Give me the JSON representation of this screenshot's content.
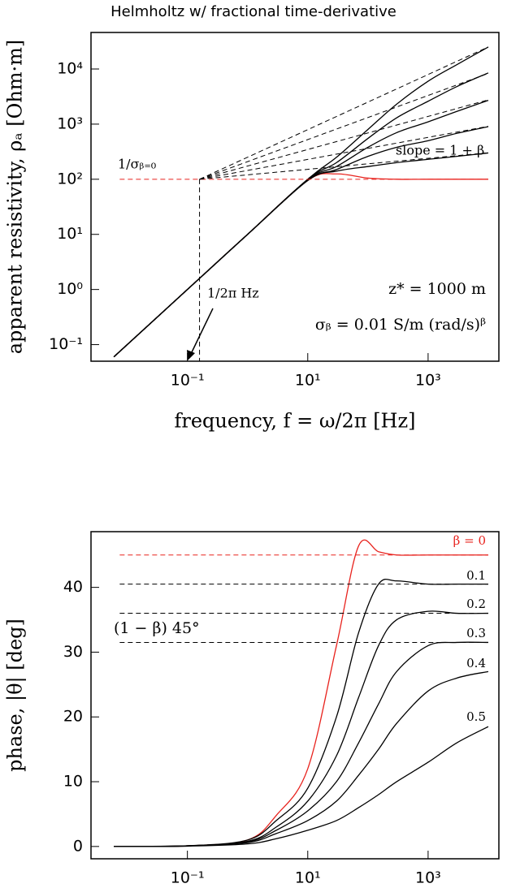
{
  "chart_data": [
    {
      "type": "line",
      "title": "Helmholtz w/ fractional time-derivative",
      "xlabel": "frequency, f = ω/2π [Hz]",
      "ylabel": "apparent resistivity, ρₐ [Ohm·m]",
      "xscale": "log",
      "yscale": "log",
      "xlim": [
        0.0025,
        15000
      ],
      "ylim": [
        0.05,
        46000
      ],
      "xticks": [
        {
          "value": 0.1,
          "label": "10⁻¹"
        },
        {
          "value": 10,
          "label": "10¹"
        },
        {
          "value": 1000,
          "label": "10³"
        }
      ],
      "yticks": [
        {
          "value": 0.1,
          "label": "10⁻¹"
        },
        {
          "value": 1,
          "label": "10⁰"
        },
        {
          "value": 10,
          "label": "10¹"
        },
        {
          "value": 100,
          "label": "10²"
        },
        {
          "value": 1000,
          "label": "10³"
        },
        {
          "value": 10000,
          "label": "10⁴"
        }
      ],
      "x": [
        0.006,
        0.1,
        1,
        10,
        30,
        100,
        300,
        1000,
        3000,
        10000
      ],
      "series": [
        {
          "color": "#e8231e",
          "dash": false,
          "values": [
            0.06,
            1,
            10,
            95,
            125,
            105,
            100,
            100,
            100,
            100
          ]
        },
        {
          "color": "#000000",
          "dash": false,
          "values": [
            0.06,
            1,
            10,
            95,
            140,
            170,
            200,
            230,
            260,
            300
          ]
        },
        {
          "color": "#000000",
          "dash": false,
          "values": [
            0.06,
            1,
            10,
            95,
            150,
            260,
            380,
            500,
            680,
            900
          ]
        },
        {
          "color": "#000000",
          "dash": false,
          "values": [
            0.06,
            1,
            10,
            98,
            170,
            380,
            700,
            1100,
            1700,
            2700
          ]
        },
        {
          "color": "#000000",
          "dash": false,
          "values": [
            0.06,
            1,
            10,
            100,
            200,
            550,
            1300,
            2600,
            4800,
            8500
          ]
        },
        {
          "color": "#000000",
          "dash": false,
          "values": [
            0.06,
            1,
            10,
            100,
            250,
            800,
            2300,
            6000,
            12000,
            25000
          ]
        },
        {
          "color": "#e8231e",
          "dash": true,
          "x": [
            0.0075,
            10000
          ],
          "values": [
            100,
            100
          ]
        },
        {
          "color": "#000000",
          "dash": true,
          "x": [
            0.159,
            10000
          ],
          "values": [
            100,
            302
          ]
        },
        {
          "color": "#000000",
          "dash": true,
          "x": [
            0.159,
            10000
          ],
          "values": [
            100,
            912
          ]
        },
        {
          "color": "#000000",
          "dash": true,
          "x": [
            0.159,
            10000
          ],
          "values": [
            100,
            2754
          ]
        },
        {
          "color": "#000000",
          "dash": true,
          "x": [
            0.159,
            10000
          ],
          "values": [
            100,
            8318
          ]
        },
        {
          "color": "#000000",
          "dash": true,
          "x": [
            0.159,
            10000
          ],
          "values": [
            100,
            25119
          ]
        },
        {
          "color": "#000000",
          "dash": true,
          "x": [
            0.159,
            0.159
          ],
          "values": [
            100,
            0.05
          ]
        }
      ],
      "annotations": [
        "1/σᵦ₌₀",
        "slope = 1 + β",
        "1/2π Hz",
        "z* = 1000 m",
        "σᵦ = 0.01 S/m (rad/s)ᵝ"
      ]
    },
    {
      "type": "line",
      "ylabel": "phase, |θ| [deg]",
      "xscale": "log",
      "yscale": "linear",
      "xlim": [
        0.0025,
        15000
      ],
      "ylim": [
        -1.9,
        48.6
      ],
      "xticks": [
        {
          "value": 0.1,
          "label": "10⁻¹"
        },
        {
          "value": 10,
          "label": "10¹"
        },
        {
          "value": 1000,
          "label": "10³"
        }
      ],
      "yticks": [
        0,
        10,
        20,
        30,
        40
      ],
      "x": [
        0.006,
        0.1,
        1,
        3,
        10,
        30,
        70,
        150,
        300,
        1000,
        3000,
        10000
      ],
      "series": [
        {
          "name": "β = 0",
          "color": "#e8231e",
          "dash": false,
          "values": [
            0,
            0.1,
            1,
            4.8,
            12,
            31,
            46.4,
            45.5,
            45,
            45,
            45,
            45
          ]
        },
        {
          "name": "0.1",
          "color": "#000000",
          "dash": false,
          "values": [
            0,
            0.1,
            1,
            4,
            9,
            20,
            33,
            40.5,
            41,
            40.5,
            40.5,
            40.5
          ]
        },
        {
          "name": "0.2",
          "color": "#000000",
          "dash": false,
          "values": [
            0,
            0.1,
            0.8,
            3,
            7,
            14,
            23,
            31,
            35,
            36.3,
            36,
            36
          ]
        },
        {
          "name": "0.3",
          "color": "#000000",
          "dash": false,
          "values": [
            0,
            0.1,
            0.7,
            2.5,
            5.5,
            10,
            16,
            22,
            27,
            31,
            31.5,
            31.5
          ]
        },
        {
          "name": "0.4",
          "color": "#000000",
          "dash": false,
          "values": [
            0,
            0.1,
            0.6,
            2,
            4,
            7,
            11,
            15,
            19,
            24,
            26,
            27
          ]
        },
        {
          "name": "0.5",
          "color": "#000000",
          "dash": false,
          "values": [
            0,
            0.05,
            0.4,
            1.2,
            2.5,
            4,
            6,
            8,
            10,
            13,
            16,
            18.5
          ]
        },
        {
          "color": "#e8231e",
          "dash": true,
          "x": [
            0.0075,
            10000
          ],
          "values": [
            45,
            45
          ]
        },
        {
          "color": "#000000",
          "dash": true,
          "x": [
            0.0075,
            10000
          ],
          "values": [
            40.5,
            40.5
          ]
        },
        {
          "color": "#000000",
          "dash": true,
          "x": [
            0.0075,
            10000
          ],
          "values": [
            36,
            36
          ]
        },
        {
          "color": "#000000",
          "dash": true,
          "x": [
            0.0075,
            10000
          ],
          "values": [
            31.5,
            31.5
          ]
        }
      ],
      "annotations": [
        "(1 − β) 45°"
      ]
    }
  ]
}
